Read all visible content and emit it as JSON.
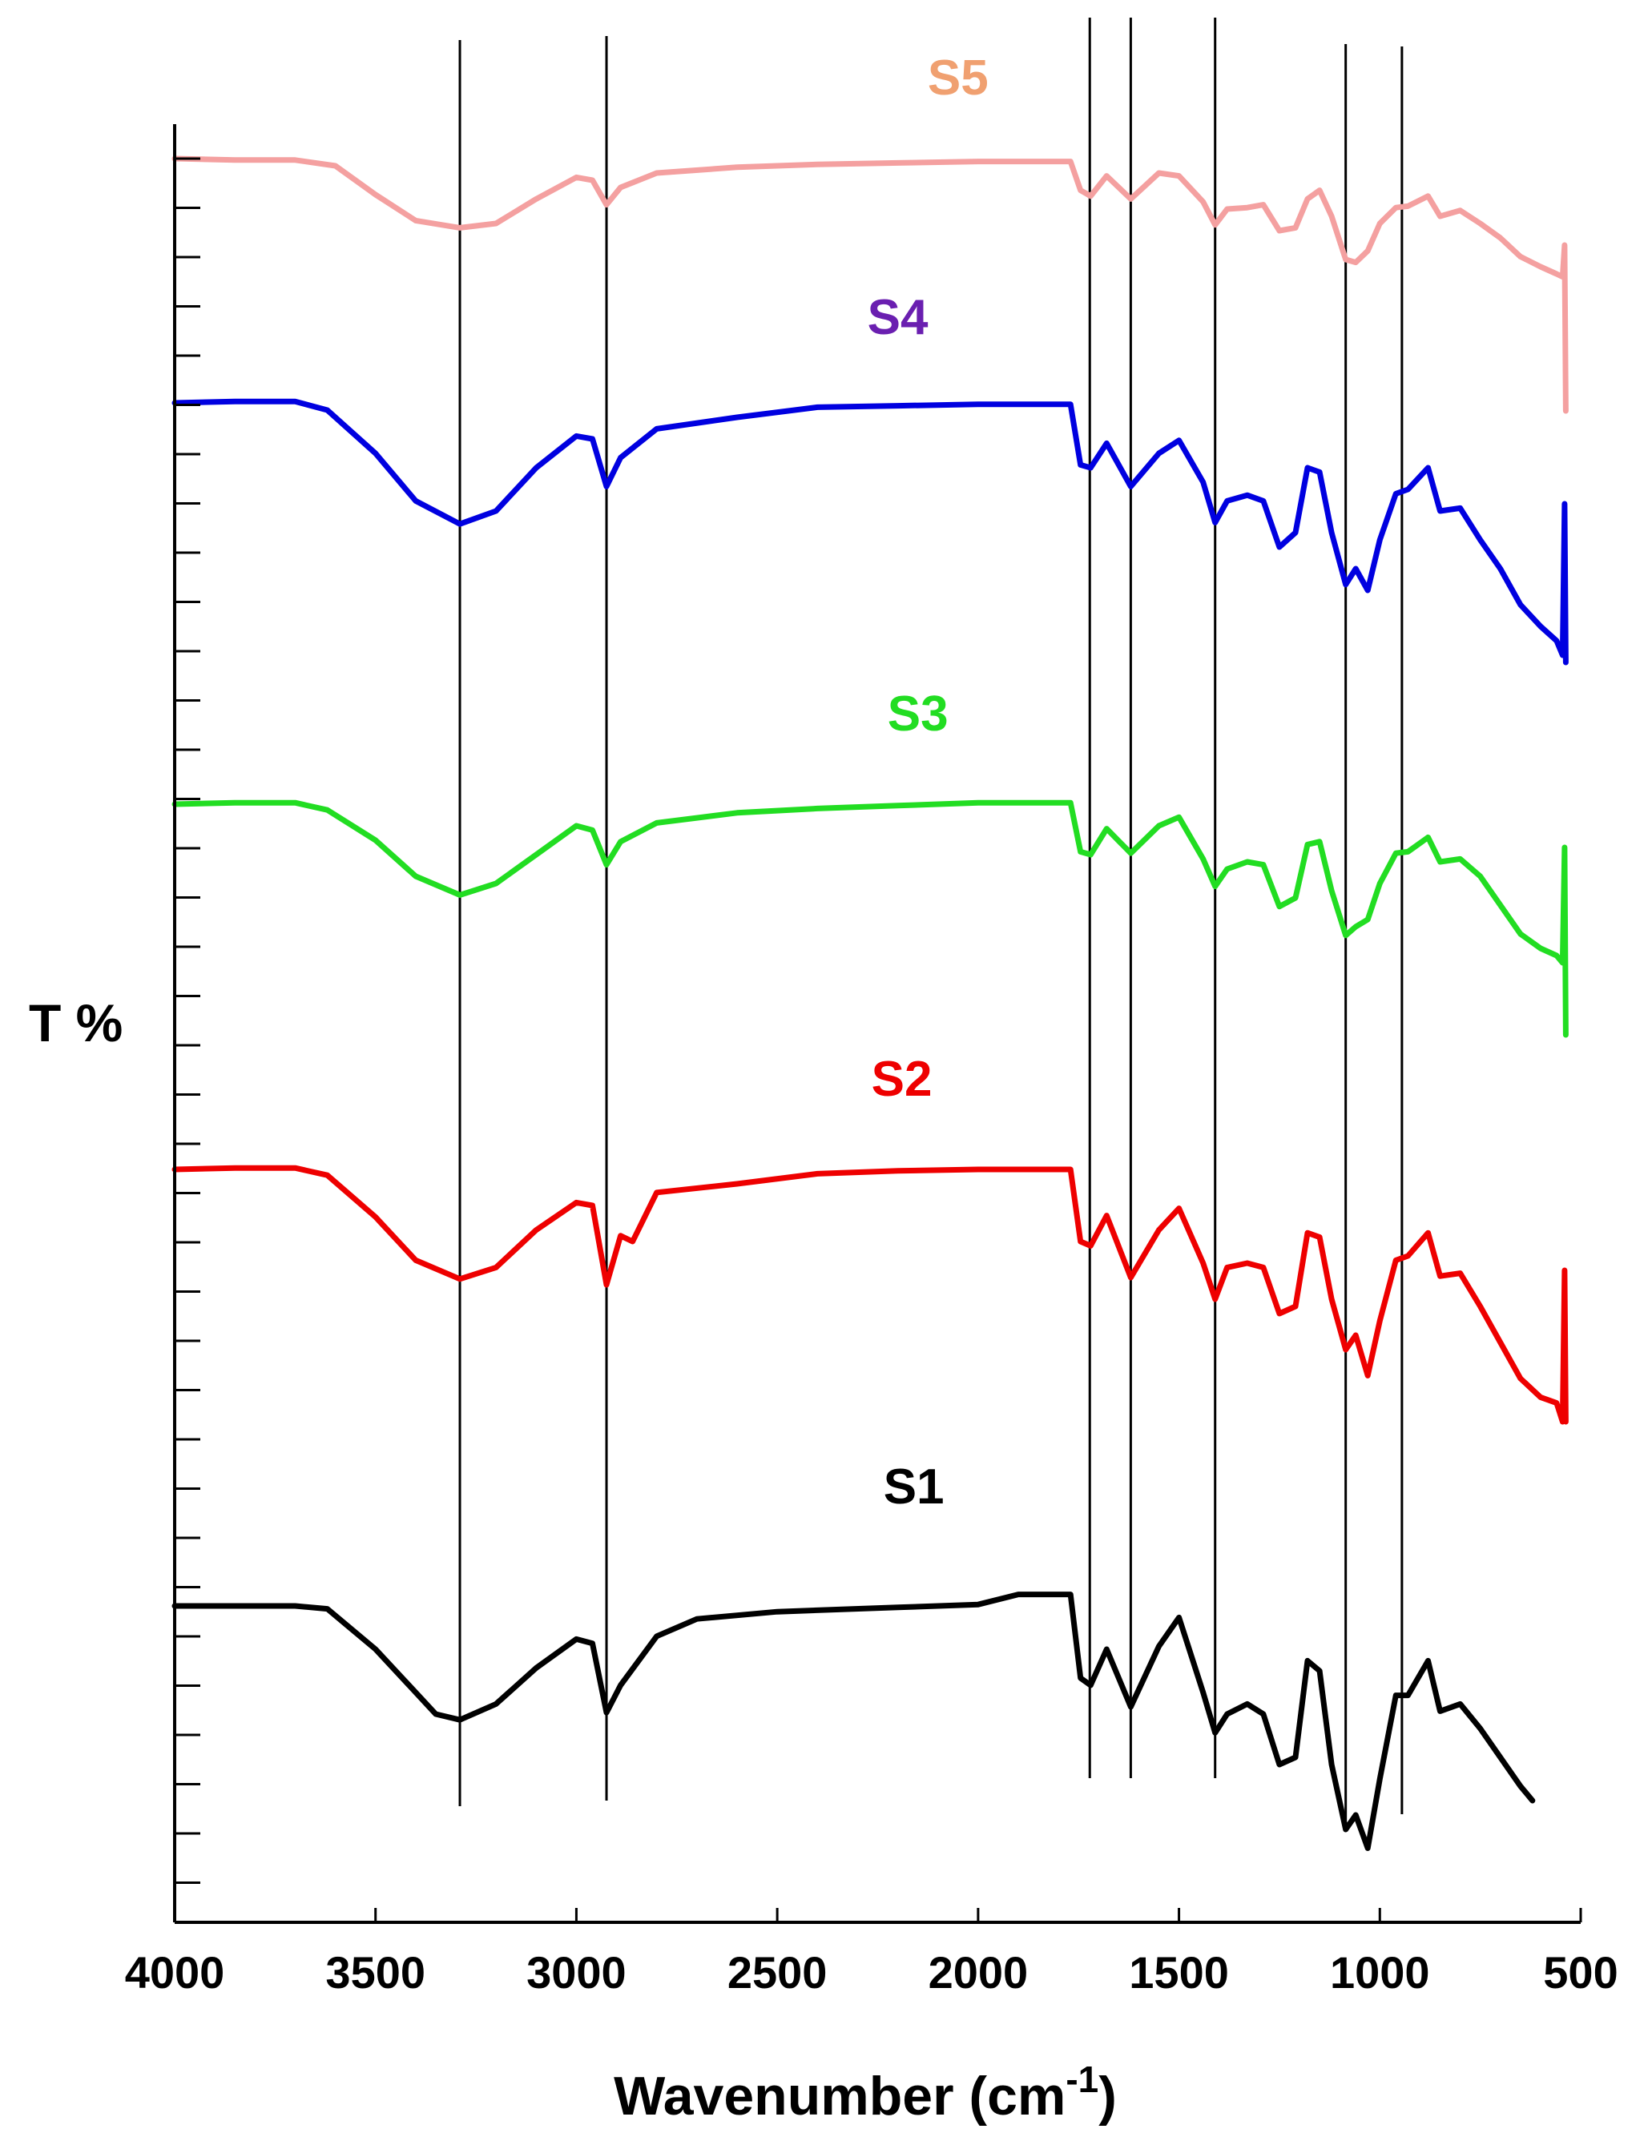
{
  "chart_data": {
    "type": "line",
    "title": "",
    "xlabel_main": "Wavenumber (cm",
    "xlabel_sup": "-1",
    "xlabel_close": ")",
    "ylabel": "T %",
    "xlim": [
      4000,
      500
    ],
    "x_reversed": true,
    "x_ticks": [
      {
        "value": 4000,
        "label": "4000"
      },
      {
        "value": 3500,
        "label": "3500"
      },
      {
        "value": 3000,
        "label": "3000"
      },
      {
        "value": 2500,
        "label": "2500"
      },
      {
        "value": 2000,
        "label": "2000"
      },
      {
        "value": 1500,
        "label": "1500"
      },
      {
        "value": 1000,
        "label": "1000"
      },
      {
        "value": 500,
        "label": "500"
      }
    ],
    "y_tick_labels": false,
    "grid": false,
    "reference_lines": [
      3290,
      2925,
      1722,
      1620,
      1410,
      1085,
      945
    ],
    "series": [
      {
        "name": "S5",
        "color": "#f4a0a0",
        "label_color": "#f0a070",
        "label_x": 2050,
        "label_y": 1.2,
        "points": [
          [
            4000,
            0
          ],
          [
            3850,
            -0.1
          ],
          [
            3700,
            -0.1
          ],
          [
            3600,
            -0.5
          ],
          [
            3500,
            -2.5
          ],
          [
            3400,
            -4.3
          ],
          [
            3290,
            -4.8
          ],
          [
            3200,
            -4.5
          ],
          [
            3100,
            -2.8
          ],
          [
            3000,
            -1.3
          ],
          [
            2960,
            -1.5
          ],
          [
            2925,
            -3.2
          ],
          [
            2890,
            -2.0
          ],
          [
            2800,
            -1.0
          ],
          [
            2600,
            -0.6
          ],
          [
            2400,
            -0.4
          ],
          [
            2200,
            -0.3
          ],
          [
            2000,
            -0.2
          ],
          [
            1770,
            -0.2
          ],
          [
            1745,
            -2.2
          ],
          [
            1720,
            -2.6
          ],
          [
            1680,
            -1.2
          ],
          [
            1620,
            -2.8
          ],
          [
            1550,
            -1.0
          ],
          [
            1500,
            -1.2
          ],
          [
            1440,
            -3.0
          ],
          [
            1410,
            -4.6
          ],
          [
            1380,
            -3.5
          ],
          [
            1330,
            -3.4
          ],
          [
            1290,
            -3.2
          ],
          [
            1250,
            -5.0
          ],
          [
            1210,
            -4.8
          ],
          [
            1180,
            -2.8
          ],
          [
            1150,
            -2.2
          ],
          [
            1120,
            -4.0
          ],
          [
            1085,
            -7.0
          ],
          [
            1060,
            -7.2
          ],
          [
            1030,
            -6.4
          ],
          [
            1000,
            -4.5
          ],
          [
            960,
            -3.4
          ],
          [
            930,
            -3.3
          ],
          [
            880,
            -2.6
          ],
          [
            850,
            -4.0
          ],
          [
            800,
            -3.6
          ],
          [
            750,
            -4.5
          ],
          [
            700,
            -5.5
          ],
          [
            650,
            -6.8
          ],
          [
            600,
            -7.5
          ],
          [
            560,
            -8.0
          ],
          [
            545,
            -8.2
          ],
          [
            540,
            -6.0
          ],
          [
            537,
            -17.5
          ]
        ]
      },
      {
        "name": "S4",
        "color": "#0000e0",
        "label_color": "#6a1fb0",
        "label_x": 2200,
        "label_y": 1.3,
        "points": [
          [
            4000,
            0
          ],
          [
            3850,
            0.1
          ],
          [
            3700,
            0.1
          ],
          [
            3620,
            -0.5
          ],
          [
            3500,
            -3.5
          ],
          [
            3400,
            -6.8
          ],
          [
            3290,
            -8.4
          ],
          [
            3200,
            -7.5
          ],
          [
            3100,
            -4.5
          ],
          [
            3000,
            -2.3
          ],
          [
            2960,
            -2.5
          ],
          [
            2925,
            -5.8
          ],
          [
            2890,
            -3.8
          ],
          [
            2800,
            -1.8
          ],
          [
            2600,
            -1.0
          ],
          [
            2400,
            -0.3
          ],
          [
            2200,
            -0.2
          ],
          [
            2000,
            -0.1
          ],
          [
            1770,
            -0.1
          ],
          [
            1745,
            -4.3
          ],
          [
            1720,
            -4.5
          ],
          [
            1680,
            -2.8
          ],
          [
            1620,
            -5.8
          ],
          [
            1550,
            -3.5
          ],
          [
            1500,
            -2.6
          ],
          [
            1440,
            -5.5
          ],
          [
            1410,
            -8.3
          ],
          [
            1380,
            -6.8
          ],
          [
            1330,
            -6.4
          ],
          [
            1290,
            -6.8
          ],
          [
            1250,
            -10.0
          ],
          [
            1210,
            -9.0
          ],
          [
            1180,
            -4.5
          ],
          [
            1150,
            -4.8
          ],
          [
            1120,
            -9.0
          ],
          [
            1085,
            -12.6
          ],
          [
            1060,
            -11.5
          ],
          [
            1030,
            -13.0
          ],
          [
            1000,
            -9.5
          ],
          [
            960,
            -6.3
          ],
          [
            930,
            -6.0
          ],
          [
            880,
            -4.5
          ],
          [
            850,
            -7.5
          ],
          [
            800,
            -7.3
          ],
          [
            750,
            -9.5
          ],
          [
            700,
            -11.5
          ],
          [
            650,
            -14.0
          ],
          [
            600,
            -15.5
          ],
          [
            560,
            -16.5
          ],
          [
            545,
            -17.5
          ],
          [
            540,
            -7.0
          ],
          [
            537,
            -18.0
          ]
        ]
      },
      {
        "name": "S3",
        "color": "#22dd22",
        "label_color": "#22dd22",
        "label_x": 2150,
        "label_y": 1.4,
        "points": [
          [
            4000,
            0
          ],
          [
            3850,
            0.1
          ],
          [
            3700,
            0.1
          ],
          [
            3620,
            -0.4
          ],
          [
            3500,
            -2.5
          ],
          [
            3400,
            -5.0
          ],
          [
            3290,
            -6.3
          ],
          [
            3200,
            -5.5
          ],
          [
            3100,
            -3.5
          ],
          [
            3000,
            -1.5
          ],
          [
            2960,
            -1.8
          ],
          [
            2925,
            -4.2
          ],
          [
            2890,
            -2.6
          ],
          [
            2800,
            -1.3
          ],
          [
            2600,
            -0.6
          ],
          [
            2400,
            -0.3
          ],
          [
            2200,
            -0.1
          ],
          [
            2000,
            0.1
          ],
          [
            1770,
            0.1
          ],
          [
            1745,
            -3.3
          ],
          [
            1720,
            -3.5
          ],
          [
            1680,
            -1.7
          ],
          [
            1620,
            -3.4
          ],
          [
            1550,
            -1.5
          ],
          [
            1500,
            -0.9
          ],
          [
            1440,
            -3.8
          ],
          [
            1410,
            -5.7
          ],
          [
            1380,
            -4.5
          ],
          [
            1330,
            -4.0
          ],
          [
            1290,
            -4.2
          ],
          [
            1250,
            -7.1
          ],
          [
            1210,
            -6.5
          ],
          [
            1180,
            -2.8
          ],
          [
            1150,
            -2.6
          ],
          [
            1120,
            -6.0
          ],
          [
            1085,
            -9.1
          ],
          [
            1060,
            -8.5
          ],
          [
            1030,
            -8.0
          ],
          [
            1000,
            -5.5
          ],
          [
            960,
            -3.4
          ],
          [
            930,
            -3.3
          ],
          [
            880,
            -2.3
          ],
          [
            850,
            -4.0
          ],
          [
            800,
            -3.8
          ],
          [
            750,
            -5.0
          ],
          [
            700,
            -7.0
          ],
          [
            650,
            -9.0
          ],
          [
            600,
            -10.0
          ],
          [
            560,
            -10.5
          ],
          [
            545,
            -11.0
          ],
          [
            540,
            -3.0
          ],
          [
            537,
            -16.0
          ]
        ]
      },
      {
        "name": "S2",
        "color": "#ee0000",
        "label_color": "#ee0000",
        "label_x": 2190,
        "label_y": 1.4,
        "points": [
          [
            4000,
            0
          ],
          [
            3850,
            0.1
          ],
          [
            3700,
            0.1
          ],
          [
            3620,
            -0.4
          ],
          [
            3500,
            -3.3
          ],
          [
            3400,
            -6.3
          ],
          [
            3290,
            -7.6
          ],
          [
            3200,
            -6.8
          ],
          [
            3100,
            -4.2
          ],
          [
            3000,
            -2.3
          ],
          [
            2960,
            -2.5
          ],
          [
            2925,
            -8.0
          ],
          [
            2890,
            -4.6
          ],
          [
            2860,
            -5.0
          ],
          [
            2800,
            -1.6
          ],
          [
            2600,
            -1.0
          ],
          [
            2400,
            -0.3
          ],
          [
            2200,
            -0.1
          ],
          [
            2000,
            0
          ],
          [
            1770,
            0
          ],
          [
            1745,
            -5.0
          ],
          [
            1720,
            -5.3
          ],
          [
            1680,
            -3.2
          ],
          [
            1620,
            -7.5
          ],
          [
            1550,
            -4.2
          ],
          [
            1500,
            -2.7
          ],
          [
            1440,
            -6.5
          ],
          [
            1410,
            -9.0
          ],
          [
            1380,
            -6.8
          ],
          [
            1330,
            -6.5
          ],
          [
            1290,
            -6.8
          ],
          [
            1250,
            -10.0
          ],
          [
            1210,
            -9.5
          ],
          [
            1180,
            -4.4
          ],
          [
            1150,
            -4.7
          ],
          [
            1120,
            -9.0
          ],
          [
            1085,
            -12.5
          ],
          [
            1060,
            -11.5
          ],
          [
            1030,
            -14.3
          ],
          [
            1000,
            -10.5
          ],
          [
            960,
            -6.3
          ],
          [
            930,
            -6.0
          ],
          [
            880,
            -4.4
          ],
          [
            850,
            -7.4
          ],
          [
            800,
            -7.2
          ],
          [
            750,
            -9.5
          ],
          [
            700,
            -12.0
          ],
          [
            650,
            -14.5
          ],
          [
            600,
            -15.8
          ],
          [
            560,
            -16.2
          ],
          [
            545,
            -17.5
          ],
          [
            540,
            -7.0
          ],
          [
            537,
            -17.5
          ]
        ]
      },
      {
        "name": "S1",
        "color": "#000000",
        "label_color": "#000000",
        "label_x": 2160,
        "label_y": 2.0,
        "points": [
          [
            4000,
            0
          ],
          [
            3850,
            0
          ],
          [
            3700,
            0
          ],
          [
            3620,
            -0.2
          ],
          [
            3500,
            -3.0
          ],
          [
            3400,
            -6.0
          ],
          [
            3350,
            -7.5
          ],
          [
            3290,
            -7.9
          ],
          [
            3200,
            -6.8
          ],
          [
            3100,
            -4.3
          ],
          [
            3000,
            -2.3
          ],
          [
            2960,
            -2.6
          ],
          [
            2925,
            -7.4
          ],
          [
            2890,
            -5.5
          ],
          [
            2800,
            -2.1
          ],
          [
            2700,
            -0.9
          ],
          [
            2500,
            -0.4
          ],
          [
            2200,
            -0.1
          ],
          [
            2000,
            0.1
          ],
          [
            1900,
            0.8
          ],
          [
            1770,
            0.8
          ],
          [
            1745,
            -5.0
          ],
          [
            1720,
            -5.5
          ],
          [
            1680,
            -3.0
          ],
          [
            1620,
            -7.0
          ],
          [
            1550,
            -2.8
          ],
          [
            1500,
            -0.8
          ],
          [
            1440,
            -6.0
          ],
          [
            1410,
            -8.8
          ],
          [
            1380,
            -7.5
          ],
          [
            1330,
            -6.8
          ],
          [
            1290,
            -7.5
          ],
          [
            1250,
            -11.0
          ],
          [
            1210,
            -10.5
          ],
          [
            1180,
            -3.8
          ],
          [
            1150,
            -4.5
          ],
          [
            1120,
            -11.0
          ],
          [
            1085,
            -15.5
          ],
          [
            1060,
            -14.5
          ],
          [
            1030,
            -16.8
          ],
          [
            1000,
            -12.0
          ],
          [
            960,
            -6.2
          ],
          [
            930,
            -6.2
          ],
          [
            880,
            -3.8
          ],
          [
            850,
            -7.3
          ],
          [
            800,
            -6.8
          ],
          [
            750,
            -8.5
          ],
          [
            700,
            -10.5
          ],
          [
            650,
            -12.5
          ],
          [
            620,
            -13.5
          ]
        ]
      }
    ]
  }
}
